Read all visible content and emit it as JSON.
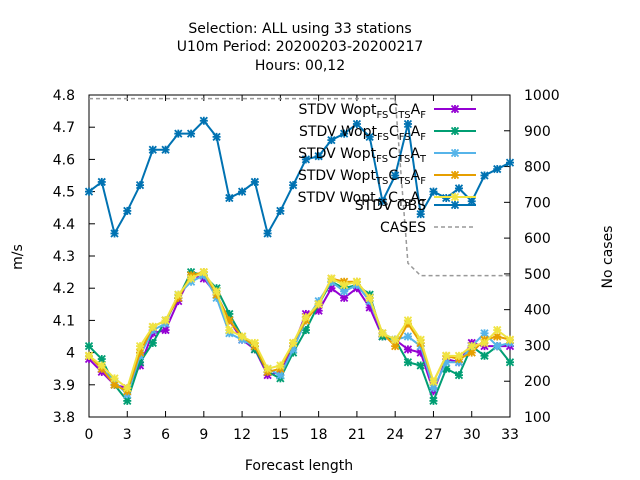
{
  "chart_data": {
    "type": "line",
    "title_lines": [
      "Selection: ALL using    33 stations",
      "U10m   Period: 20200203-20200217",
      "Hours:  00,12"
    ],
    "xlabel": "Forecast length",
    "ylabel": "m/s",
    "y2label": "No cases",
    "xlim": [
      0,
      33
    ],
    "ylim": [
      3.8,
      4.8
    ],
    "y2lim": [
      100,
      1000
    ],
    "xticks": [
      0,
      3,
      6,
      9,
      12,
      15,
      18,
      21,
      24,
      27,
      30,
      33
    ],
    "yticks": [
      3.8,
      3.9,
      4,
      4.1,
      4.2,
      4.3,
      4.4,
      4.5,
      4.6,
      4.7,
      4.8
    ],
    "y2ticks": [
      100,
      200,
      300,
      400,
      500,
      600,
      700,
      800,
      900,
      1000
    ],
    "legend_position": "top-right",
    "x": [
      0,
      1,
      2,
      3,
      4,
      5,
      6,
      7,
      8,
      9,
      10,
      11,
      12,
      13,
      14,
      15,
      16,
      17,
      18,
      19,
      20,
      21,
      22,
      23,
      24,
      25,
      26,
      27,
      28,
      29,
      30,
      31,
      32,
      33
    ],
    "series": [
      {
        "name": "STDV Wopt",
        "sub1": "FS",
        "letter1": "C",
        "sub2": "TS",
        "letter2": "A",
        "sub3": "F",
        "color": "#9400d3",
        "axis": "y1",
        "values": [
          3.98,
          3.94,
          3.9,
          3.89,
          3.96,
          4.06,
          4.07,
          4.16,
          4.24,
          4.23,
          4.18,
          4.1,
          4.04,
          4.01,
          3.93,
          3.94,
          4.02,
          4.12,
          4.13,
          4.2,
          4.17,
          4.2,
          4.14,
          4.05,
          4.04,
          4.01,
          4.0,
          3.88,
          3.98,
          3.97,
          4.03,
          4.02,
          4.02,
          4.02
        ]
      },
      {
        "name": "STDV Wopt",
        "sub1": "FS",
        "letter1": "C",
        "sub2": "FS",
        "letter2": "A",
        "sub3": "F",
        "color": "#009e73",
        "axis": "y1",
        "values": [
          4.02,
          3.98,
          3.9,
          3.85,
          3.97,
          4.03,
          4.1,
          4.17,
          4.25,
          4.24,
          4.2,
          4.12,
          4.05,
          4.01,
          3.94,
          3.92,
          4.0,
          4.07,
          4.15,
          4.22,
          4.2,
          4.21,
          4.18,
          4.05,
          4.04,
          3.97,
          3.96,
          3.85,
          3.95,
          3.93,
          4.02,
          3.99,
          4.02,
          3.97
        ]
      },
      {
        "name": "STDV Wopt",
        "sub1": "FS",
        "letter1": "C",
        "sub2": "TS",
        "letter2": "A",
        "sub3": "T",
        "color": "#56b4e9",
        "axis": "y1",
        "values": [
          3.99,
          3.95,
          3.91,
          3.87,
          3.99,
          4.07,
          4.09,
          4.18,
          4.22,
          4.24,
          4.17,
          4.06,
          4.04,
          4.02,
          3.95,
          3.93,
          4.01,
          4.1,
          4.16,
          4.22,
          4.19,
          4.21,
          4.16,
          4.06,
          4.04,
          4.05,
          4.02,
          3.89,
          3.97,
          3.97,
          4.02,
          4.06,
          4.02,
          4.03
        ]
      },
      {
        "name": "STDV Wopt",
        "sub1": "TS",
        "letter1": "C",
        "sub2": "TS",
        "letter2": "A",
        "sub3": "F",
        "color": "#e69f00",
        "axis": "y1",
        "values": [
          3.99,
          3.95,
          3.9,
          3.88,
          4.0,
          4.08,
          4.1,
          4.17,
          4.24,
          4.25,
          4.18,
          4.1,
          4.05,
          4.02,
          3.94,
          3.95,
          4.03,
          4.1,
          4.15,
          4.23,
          4.22,
          4.22,
          4.17,
          4.06,
          4.02,
          4.09,
          4.03,
          3.91,
          3.99,
          3.98,
          4.0,
          4.04,
          4.05,
          4.04
        ]
      },
      {
        "name": "STDV Wopt",
        "sub1": "TS",
        "letter1": "C",
        "sub2": "TS",
        "letter2": "A",
        "sub3": "T",
        "color": "#f0e442",
        "axis": "y1",
        "values": [
          3.99,
          3.96,
          3.92,
          3.89,
          4.02,
          4.08,
          4.1,
          4.18,
          4.23,
          4.25,
          4.19,
          4.07,
          4.05,
          4.03,
          3.95,
          3.96,
          4.03,
          4.11,
          4.15,
          4.23,
          4.21,
          4.22,
          4.17,
          4.06,
          4.04,
          4.1,
          4.04,
          3.91,
          3.99,
          3.99,
          4.02,
          4.03,
          4.07,
          4.04
        ]
      },
      {
        "name": "STDV OBS",
        "color": "#0072b2",
        "axis": "y1",
        "values": [
          4.5,
          4.53,
          4.37,
          4.44,
          4.52,
          4.63,
          4.63,
          4.68,
          4.68,
          4.72,
          4.67,
          4.48,
          4.5,
          4.53,
          4.37,
          4.44,
          4.52,
          4.6,
          4.61,
          4.66,
          4.68,
          4.71,
          4.67,
          4.47,
          4.55,
          4.71,
          4.43,
          4.5,
          4.48,
          4.51,
          4.47,
          4.55,
          4.57,
          4.59
        ]
      },
      {
        "name": "CASES",
        "color": "#999999",
        "axis": "y2",
        "dashed": true,
        "values": [
          990,
          990,
          990,
          990,
          990,
          990,
          990,
          990,
          990,
          990,
          990,
          990,
          990,
          990,
          990,
          990,
          990,
          990,
          990,
          990,
          990,
          990,
          990,
          990,
          990,
          530,
          495,
          495,
          495,
          495,
          495,
          495,
          495,
          495
        ]
      }
    ]
  }
}
